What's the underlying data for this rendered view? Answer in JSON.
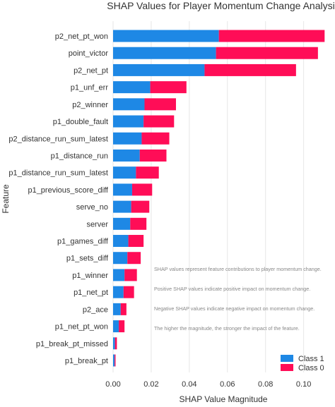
{
  "chart_data": {
    "type": "bar",
    "orientation": "horizontal",
    "stacked": true,
    "title": "SHAP Values for Player Momentum Change Analysis",
    "xlabel": "SHAP Value Magnitude",
    "ylabel": "Feature",
    "xlim": [
      0,
      0.112
    ],
    "xticks": [
      "0.00",
      "0.02",
      "0.04",
      "0.06",
      "0.08",
      "0.10"
    ],
    "xtick_values": [
      0,
      0.02,
      0.04,
      0.06,
      0.08,
      0.1
    ],
    "grid": true,
    "legend_position": "bottom-right",
    "categories": [
      "p2_net_pt_won",
      "point_victor",
      "p2_net_pt",
      "p1_unf_err",
      "p2_winner",
      "p1_double_fault",
      "p2_distance_run_sum_latest",
      "p1_distance_run",
      "p1_distance_run_sum_latest",
      "p1_previous_score_diff",
      "serve_no",
      "server",
      "p1_games_diff",
      "p1_sets_diff",
      "p1_winner",
      "p1_net_pt",
      "p2_ace",
      "p1_net_pt_won",
      "p1_break_pt_missed",
      "p1_break_pt"
    ],
    "series": [
      {
        "name": "Class 1",
        "color": "#1e88e5",
        "values": [
          0.0555,
          0.054,
          0.048,
          0.0195,
          0.0165,
          0.016,
          0.015,
          0.014,
          0.012,
          0.01,
          0.0095,
          0.009,
          0.008,
          0.0075,
          0.006,
          0.0055,
          0.004,
          0.003,
          0.001,
          0.0008
        ]
      },
      {
        "name": "Class 0",
        "color": "#ff0d57",
        "values": [
          0.0555,
          0.0535,
          0.048,
          0.019,
          0.0165,
          0.016,
          0.0145,
          0.014,
          0.012,
          0.0105,
          0.0095,
          0.0085,
          0.008,
          0.007,
          0.0065,
          0.0055,
          0.003,
          0.003,
          0.001,
          0.0005
        ]
      }
    ],
    "annotations": [
      "SHAP values represent feature contributions to player momentum change.",
      "Positive SHAP values indicate positive impact on momentum change.",
      "Negative SHAP values indicate negative impact on momentum change.",
      "The higher the magnitude, the stronger the impact of the feature."
    ]
  }
}
